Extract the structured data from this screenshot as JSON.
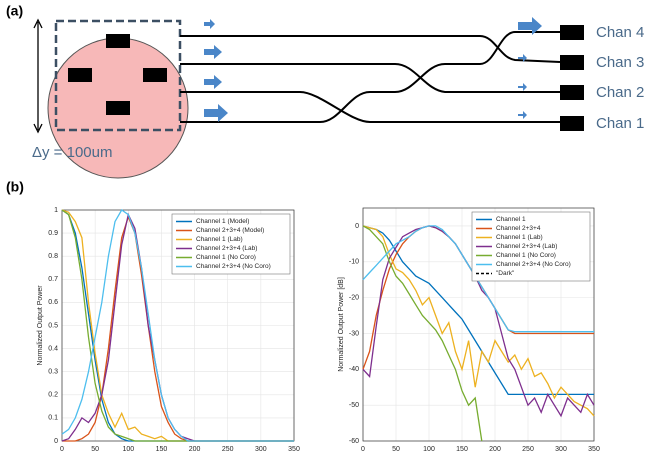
{
  "diagram": {
    "panel_a": "(a)",
    "panel_b": "(b)",
    "dimension_label": "Δy = 100um",
    "channels": [
      "Chan 4",
      "Chan 3",
      "Chan 2",
      "Chan 1"
    ]
  },
  "chart_data": [
    {
      "type": "line",
      "y_label": "Normalized Output Power",
      "x": [
        0,
        10,
        20,
        30,
        40,
        50,
        60,
        70,
        80,
        90,
        100,
        110,
        120,
        130,
        140,
        150,
        160,
        170,
        180,
        190,
        200,
        210,
        220,
        230,
        240,
        250,
        260,
        270,
        280,
        290,
        300,
        310,
        320,
        330,
        340,
        350
      ],
      "xlim": [
        0,
        350
      ],
      "xticks": [
        0,
        50,
        100,
        150,
        200,
        250,
        300,
        350
      ],
      "ylim": [
        0,
        1
      ],
      "yticks": [
        0,
        0.1,
        0.2,
        0.3,
        0.4,
        0.5,
        0.6,
        0.7,
        0.8,
        0.9,
        1
      ],
      "grid": true,
      "legend": "top-right",
      "series": [
        {
          "name": "Channel 1 (Model)",
          "color": "#0072bd",
          "values": [
            1,
            0.98,
            0.9,
            0.75,
            0.55,
            0.35,
            0.18,
            0.08,
            0.03,
            0.01,
            0,
            0,
            0,
            0,
            0,
            0,
            0,
            0,
            0,
            0,
            0,
            0,
            0,
            0,
            0,
            0,
            0,
            0,
            0,
            0,
            0,
            0,
            0,
            0,
            0,
            0
          ]
        },
        {
          "name": "Channel 2+3+4 (Model)",
          "color": "#d95319",
          "values": [
            0,
            0,
            0,
            0.01,
            0.03,
            0.08,
            0.2,
            0.4,
            0.65,
            0.88,
            0.97,
            0.9,
            0.72,
            0.5,
            0.3,
            0.15,
            0.08,
            0.03,
            0.01,
            0,
            0,
            0,
            0,
            0,
            0,
            0,
            0,
            0,
            0,
            0,
            0,
            0,
            0,
            0,
            0,
            0
          ]
        },
        {
          "name": "Channel 1 (Lab)",
          "color": "#edb120",
          "values": [
            1,
            0.99,
            0.95,
            0.88,
            0.6,
            0.38,
            0.2,
            0.12,
            0.06,
            0.12,
            0.05,
            0.06,
            0.03,
            0.02,
            0.01,
            0.02,
            0,
            0,
            0,
            0,
            0,
            0,
            0,
            0,
            0,
            0,
            0,
            0,
            0,
            0,
            0,
            0,
            0,
            0,
            0,
            0
          ]
        },
        {
          "name": "Channel 2+3+4 (Lab)",
          "color": "#7e2f8e",
          "values": [
            0,
            0.01,
            0.05,
            0.1,
            0.08,
            0.12,
            0.2,
            0.35,
            0.6,
            0.85,
            0.98,
            0.92,
            0.75,
            0.5,
            0.35,
            0.2,
            0.1,
            0.05,
            0.02,
            0.01,
            0,
            0,
            0,
            0,
            0,
            0,
            0,
            0,
            0,
            0,
            0,
            0,
            0,
            0,
            0,
            0
          ]
        },
        {
          "name": "Channel 1 (No Coro)",
          "color": "#77ac30",
          "values": [
            1,
            0.98,
            0.88,
            0.7,
            0.45,
            0.25,
            0.13,
            0.06,
            0.03,
            0.02,
            0.01,
            0,
            0,
            0,
            0,
            0,
            0,
            0,
            0,
            0,
            0,
            0,
            0,
            0,
            0,
            0,
            0,
            0,
            0,
            0,
            0,
            0,
            0,
            0,
            0,
            0
          ]
        },
        {
          "name": "Channel 2+3+4 (No Coro)",
          "color": "#4dbeee",
          "values": [
            0.03,
            0.05,
            0.1,
            0.18,
            0.3,
            0.45,
            0.6,
            0.8,
            0.95,
            1,
            0.98,
            0.9,
            0.75,
            0.55,
            0.35,
            0.2,
            0.1,
            0.05,
            0.02,
            0,
            0,
            0,
            0,
            0,
            0,
            0,
            0,
            0,
            0,
            0,
            0,
            0,
            0,
            0,
            0,
            0
          ]
        }
      ]
    },
    {
      "type": "line",
      "y_label": "Normalized Output Power [dB]",
      "x": [
        0,
        10,
        20,
        30,
        40,
        50,
        60,
        70,
        80,
        90,
        100,
        110,
        120,
        130,
        140,
        150,
        160,
        170,
        180,
        190,
        200,
        210,
        220,
        230,
        240,
        250,
        260,
        270,
        280,
        290,
        300,
        310,
        320,
        330,
        340,
        350
      ],
      "xlim": [
        0,
        350
      ],
      "xticks": [
        0,
        50,
        100,
        150,
        200,
        250,
        300,
        350
      ],
      "ylim": [
        -60,
        5
      ],
      "yticks": [
        0,
        -10,
        -20,
        -30,
        -40,
        -50,
        -60
      ],
      "grid": true,
      "legend": "top-right",
      "series": [
        {
          "name": "Channel 1",
          "color": "#0072bd",
          "values": [
            0,
            -0.5,
            -1,
            -2,
            -4,
            -7,
            -10,
            -12,
            -14,
            -15,
            -16,
            -18,
            -20,
            -22,
            -24,
            -26,
            -29,
            -32,
            -35,
            -38,
            -41,
            -44,
            -47,
            -47,
            -47,
            -47,
            -47,
            -47,
            -47,
            -47,
            -47,
            -47,
            -47,
            -47,
            -47,
            -47
          ]
        },
        {
          "name": "Channel 2+3+4",
          "color": "#d95319",
          "values": [
            -40,
            -35,
            -25,
            -18,
            -12,
            -8,
            -5,
            -3,
            -1.5,
            -0.5,
            0,
            -0.5,
            -1.5,
            -3,
            -5,
            -8,
            -11,
            -14,
            -17,
            -20,
            -23,
            -26,
            -29,
            -30,
            -30,
            -30,
            -30,
            -30,
            -30,
            -30,
            -30,
            -30,
            -30,
            -30,
            -30,
            -30
          ]
        },
        {
          "name": "Channel 1 (Lab)",
          "color": "#edb120",
          "values": [
            0,
            -0.5,
            -1,
            -3,
            -8,
            -12,
            -13,
            -15,
            -18,
            -22,
            -20,
            -25,
            -30,
            -27,
            -35,
            -40,
            -32,
            -45,
            -35,
            -38,
            -32,
            -35,
            -38,
            -36,
            -40,
            -37,
            -42,
            -41,
            -44,
            -48,
            -45,
            -47,
            -49,
            -50,
            -51,
            -53
          ]
        },
        {
          "name": "Channel 2+3+4 (Lab)",
          "color": "#7e2f8e",
          "values": [
            -40,
            -42,
            -28,
            -15,
            -9,
            -6,
            -3,
            -2,
            -1,
            -0.5,
            0,
            -0.5,
            -1.5,
            -3,
            -5,
            -8,
            -11,
            -14,
            -18,
            -20,
            -23,
            -30,
            -37,
            -40,
            -45,
            -50,
            -48,
            -52,
            -47,
            -50,
            -53,
            -48,
            -50,
            -52,
            -47,
            -50
          ]
        },
        {
          "name": "Channel 1 (No Coro)",
          "color": "#77ac30",
          "values": [
            0,
            -1,
            -3,
            -5,
            -10,
            -14,
            -16,
            -19,
            -22,
            -25,
            -27,
            -29,
            -32,
            -36,
            -40,
            -46,
            -50,
            -48,
            -60,
            null,
            null,
            null,
            null,
            null,
            null,
            null,
            null,
            null,
            null,
            null,
            null,
            null,
            null,
            null,
            null,
            null
          ]
        },
        {
          "name": "Channel 2+3+4 (No Coro)",
          "color": "#4dbeee",
          "values": [
            -15,
            -13,
            -11,
            -9,
            -7,
            -5,
            -4,
            -3,
            -1.5,
            -0.5,
            0,
            0,
            -1,
            -3,
            -5,
            -8,
            -11,
            -14,
            -17,
            -20,
            -23,
            -26,
            -29,
            -29.5,
            -29.5,
            -29.5,
            -29.5,
            -29.5,
            -29.5,
            -29.5,
            -29.5,
            -29.5,
            -29.5,
            -29.5,
            -29.5,
            -29.5
          ]
        },
        {
          "name": "\"Dark\"",
          "color": "#000000",
          "dashed": true,
          "values": [
            null,
            null,
            null,
            null,
            null,
            null,
            null,
            null,
            null,
            null,
            null,
            null,
            null,
            null,
            null,
            null,
            null,
            null,
            null,
            null,
            null,
            null,
            null,
            null,
            null,
            null,
            null,
            null,
            null,
            null,
            null,
            null,
            null,
            null,
            null,
            null
          ]
        }
      ]
    }
  ]
}
